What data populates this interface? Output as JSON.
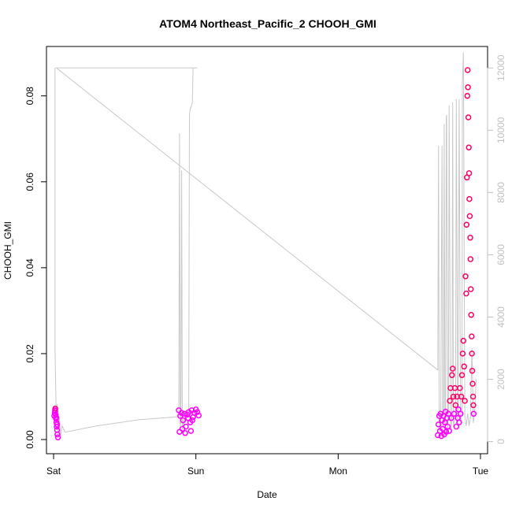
{
  "chart_data": {
    "type": "scatter",
    "title": "ATOM4 Northeast_Pacific_2 CHOOH_GMI",
    "xlabel": "Date",
    "ylabel": "CHOOH_GMI",
    "x_ticks": [
      "Sat",
      "Sun",
      "Mon",
      "Tue"
    ],
    "x_tick_days": [
      0,
      1,
      2,
      3
    ],
    "xlim_days": [
      -0.05,
      3.05
    ],
    "ylim": [
      -0.0033,
      0.0915
    ],
    "y_ticks": [
      0.0,
      0.02,
      0.04,
      0.06,
      0.08
    ],
    "y_tick_labels": [
      "0.00",
      "0.02",
      "0.04",
      "0.06",
      "0.08"
    ],
    "y2lim": [
      -390,
      12690
    ],
    "y2_ticks": [
      0,
      2000,
      4000,
      6000,
      8000,
      10000,
      12000
    ],
    "y2_tick_labels": [
      "0",
      "2000",
      "4000",
      "6000",
      "8000",
      "10000",
      "12000"
    ],
    "grid": false,
    "colors": {
      "point_low": "#ff00ff",
      "point_high": "#ff0066",
      "altitude_line": "#c8c8c8",
      "axis": "#000000",
      "right_axis": "#c0c0c0"
    },
    "series": [
      {
        "role": "altitude (right axis)",
        "style": "line",
        "x_days": [
          0.01,
          0.01,
          0.02,
          0.025,
          0.03,
          0.04,
          0.05,
          0.06,
          0.08,
          0.3,
          0.6,
          0.88,
          0.885,
          0.89,
          0.895,
          0.9,
          0.905,
          0.91,
          0.915,
          0.92,
          0.925,
          0.93,
          0.94,
          0.95,
          0.955,
          0.96,
          0.962,
          0.97,
          0.975,
          0.98,
          0.99,
          1.0,
          1.01,
          1.0,
          0.08,
          0.02,
          2.7,
          2.705,
          2.71,
          2.715,
          2.72,
          2.73,
          2.735,
          2.74,
          2.745,
          2.75,
          2.755,
          2.76,
          2.762,
          2.77,
          2.775,
          2.78,
          2.79,
          2.795,
          2.8,
          2.805,
          2.81,
          2.82,
          2.825,
          2.83,
          2.84,
          2.843,
          2.85,
          2.86,
          2.87,
          2.873,
          2.88,
          2.89,
          2.9,
          2.91,
          2.92,
          2.93,
          2.94,
          2.95,
          2.96,
          2.97
        ],
        "y_m": [
          12000,
          3000,
          500,
          1200,
          300,
          800,
          200,
          500,
          300,
          500,
          700,
          800,
          9900,
          500,
          600,
          8700,
          400,
          700,
          500,
          800,
          700,
          600,
          900,
          1000,
          10500,
          10700,
          10700,
          10800,
          10900,
          12000,
          12000,
          12000,
          12000,
          12000,
          12000,
          12000,
          2300,
          9500,
          200,
          800,
          500,
          9500,
          200,
          1000,
          10200,
          100,
          800,
          10400,
          10500,
          400,
          1000,
          10800,
          600,
          300,
          1200,
          10900,
          500,
          800,
          1100,
          11000,
          500,
          1200,
          11000,
          600,
          900,
          11500,
          12500,
          800,
          500,
          900,
          500,
          800,
          3000,
          600,
          1000,
          2000
        ]
      },
      {
        "role": "CHOOH_GMI (left axis)",
        "style": "points",
        "points_days": [
          [
            0.005,
            0.0055
          ],
          [
            0.008,
            0.0062
          ],
          [
            0.01,
            0.0068
          ],
          [
            0.012,
            0.0072
          ],
          [
            0.015,
            0.0058
          ],
          [
            0.017,
            0.0048
          ],
          [
            0.02,
            0.004
          ],
          [
            0.022,
            0.003
          ],
          [
            0.025,
            0.0022
          ],
          [
            0.027,
            0.0012
          ],
          [
            0.03,
            0.0005
          ],
          [
            0.012,
            0.0066
          ],
          [
            0.018,
            0.0052
          ],
          [
            0.024,
            0.0035
          ],
          [
            0.88,
            0.0068
          ],
          [
            0.89,
            0.0055
          ],
          [
            0.9,
            0.0062
          ],
          [
            0.91,
            0.0045
          ],
          [
            0.92,
            0.006
          ],
          [
            0.93,
            0.003
          ],
          [
            0.94,
            0.0058
          ],
          [
            0.95,
            0.0064
          ],
          [
            0.96,
            0.004
          ],
          [
            0.97,
            0.0068
          ],
          [
            0.98,
            0.0052
          ],
          [
            0.99,
            0.0062
          ],
          [
            1.0,
            0.007
          ],
          [
            1.01,
            0.0064
          ],
          [
            1.02,
            0.0056
          ],
          [
            0.885,
            0.0018
          ],
          [
            0.905,
            0.0025
          ],
          [
            0.925,
            0.0015
          ],
          [
            0.945,
            0.005
          ],
          [
            0.965,
            0.002
          ],
          [
            0.975,
            0.0045
          ],
          [
            2.7,
            0.001
          ],
          [
            2.705,
            0.0035
          ],
          [
            2.71,
            0.0055
          ],
          [
            2.715,
            0.002
          ],
          [
            2.72,
            0.006
          ],
          [
            2.725,
            0.0008
          ],
          [
            2.73,
            0.0045
          ],
          [
            2.735,
            0.0025
          ],
          [
            2.74,
            0.0055
          ],
          [
            2.745,
            0.0012
          ],
          [
            2.75,
            0.004
          ],
          [
            2.755,
            0.0065
          ],
          [
            2.76,
            0.0018
          ],
          [
            2.765,
            0.005
          ],
          [
            2.77,
            0.003
          ],
          [
            2.775,
            0.006
          ],
          [
            2.78,
            0.002
          ],
          [
            2.785,
            0.009
          ],
          [
            2.79,
            0.012
          ],
          [
            2.795,
            0.005
          ],
          [
            2.8,
            0.015
          ],
          [
            2.805,
            0.0165
          ],
          [
            2.81,
            0.01
          ],
          [
            2.815,
            0.006
          ],
          [
            2.82,
            0.012
          ],
          [
            2.825,
            0.008
          ],
          [
            2.83,
            0.003
          ],
          [
            2.835,
            0.01
          ],
          [
            2.84,
            0.005
          ],
          [
            2.845,
            0.007
          ],
          [
            2.85,
            0.004
          ],
          [
            2.855,
            0.012
          ],
          [
            2.86,
            0.006
          ],
          [
            2.865,
            0.01
          ],
          [
            2.87,
            0.015
          ],
          [
            2.875,
            0.02
          ],
          [
            2.88,
            0.023
          ],
          [
            2.885,
            0.017
          ],
          [
            2.89,
            0.009
          ],
          [
            2.895,
            0.038
          ],
          [
            2.9,
            0.034
          ],
          [
            2.902,
            0.05
          ],
          [
            2.905,
            0.061
          ],
          [
            2.908,
            0.08
          ],
          [
            2.91,
            0.086
          ],
          [
            2.912,
            0.082
          ],
          [
            2.915,
            0.075
          ],
          [
            2.918,
            0.068
          ],
          [
            2.92,
            0.062
          ],
          [
            2.922,
            0.056
          ],
          [
            2.925,
            0.052
          ],
          [
            2.928,
            0.047
          ],
          [
            2.93,
            0.042
          ],
          [
            2.932,
            0.035
          ],
          [
            2.935,
            0.029
          ],
          [
            2.938,
            0.024
          ],
          [
            2.94,
            0.02
          ],
          [
            2.942,
            0.016
          ],
          [
            2.945,
            0.013
          ],
          [
            2.948,
            0.01
          ],
          [
            2.95,
            0.008
          ],
          [
            2.952,
            0.006
          ]
        ]
      }
    ]
  }
}
